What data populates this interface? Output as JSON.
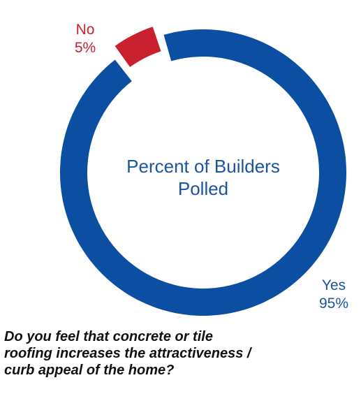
{
  "chart_data": {
    "type": "pie",
    "variant": "donut",
    "center_label": [
      "Percent of Builders",
      "Polled"
    ],
    "question": [
      "Do you feel that concrete or tile",
      "roofing increases the attractiveness /",
      "curb appeal of the home?"
    ],
    "slices": [
      {
        "name": "Yes",
        "value": 95,
        "value_label": "95%",
        "color": "#0b4ea2"
      },
      {
        "name": "No",
        "value": 5,
        "value_label": "5%",
        "color": "#c8202e"
      }
    ],
    "legend": "none"
  }
}
